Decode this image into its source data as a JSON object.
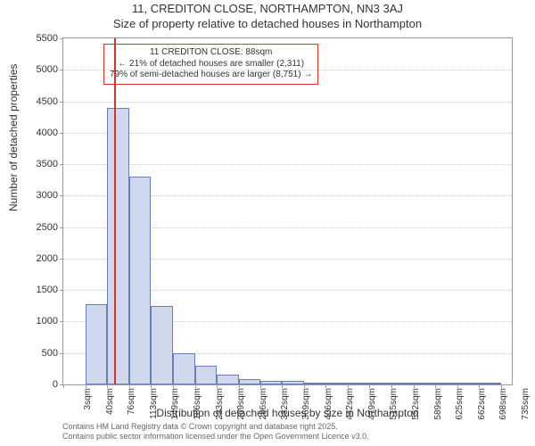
{
  "chart": {
    "type": "histogram",
    "title_line1": "11, CREDITON CLOSE, NORTHAMPTON, NN3 3AJ",
    "title_line2": "Size of property relative to detached houses in Northampton",
    "title_fontsize": 13,
    "x_label": "Distribution of detached houses by size in Northampton",
    "y_label": "Number of detached properties",
    "axis_label_fontsize": 12,
    "background_color": "#ffffff",
    "plot_border_color": "#999999",
    "grid_color": "#cccccc",
    "bar_fill": "#cfd8ec",
    "bar_stroke": "#6a7fb0",
    "ref_line_color": "#d33333",
    "ref_line_x_sqm": 88,
    "ylim": [
      0,
      5500
    ],
    "y_ticks": [
      0,
      500,
      1000,
      1500,
      2000,
      2500,
      3000,
      3500,
      4000,
      4500,
      5000,
      5500
    ],
    "x_ticks_sqm": [
      3,
      40,
      76,
      113,
      149,
      186,
      223,
      259,
      296,
      332,
      369,
      406,
      442,
      479,
      515,
      552,
      589,
      625,
      662,
      698,
      735
    ],
    "x_tick_suffix": "sqm",
    "x_min_sqm": 3,
    "x_max_sqm": 753,
    "bars": [
      {
        "x_start": 3,
        "x_end": 40,
        "count": 0
      },
      {
        "x_start": 40,
        "x_end": 76,
        "count": 1270
      },
      {
        "x_start": 76,
        "x_end": 113,
        "count": 4400
      },
      {
        "x_start": 113,
        "x_end": 149,
        "count": 3300
      },
      {
        "x_start": 149,
        "x_end": 186,
        "count": 1250
      },
      {
        "x_start": 186,
        "x_end": 223,
        "count": 500
      },
      {
        "x_start": 223,
        "x_end": 259,
        "count": 300
      },
      {
        "x_start": 259,
        "x_end": 296,
        "count": 150
      },
      {
        "x_start": 296,
        "x_end": 332,
        "count": 90
      },
      {
        "x_start": 332,
        "x_end": 369,
        "count": 60
      },
      {
        "x_start": 369,
        "x_end": 406,
        "count": 60
      },
      {
        "x_start": 406,
        "x_end": 442,
        "count": 30
      },
      {
        "x_start": 442,
        "x_end": 479,
        "count": 20
      },
      {
        "x_start": 479,
        "x_end": 515,
        "count": 15
      },
      {
        "x_start": 515,
        "x_end": 552,
        "count": 10
      },
      {
        "x_start": 552,
        "x_end": 589,
        "count": 8
      },
      {
        "x_start": 589,
        "x_end": 625,
        "count": 5
      },
      {
        "x_start": 625,
        "x_end": 662,
        "count": 5
      },
      {
        "x_start": 662,
        "x_end": 698,
        "count": 3
      },
      {
        "x_start": 698,
        "x_end": 735,
        "count": 3
      }
    ],
    "annotation": {
      "line1": "11 CREDITON CLOSE: 88sqm",
      "line2": "← 21% of detached houses are smaller (2,311)",
      "line3": "79% of semi-detached houses are larger (8,751) →",
      "border_color": "#d33333",
      "fontsize": 10
    },
    "footer": {
      "line1": "Contains HM Land Registry data © Crown copyright and database right 2025.",
      "line2": "Contains public sector information licensed under the Open Government Licence v3.0.",
      "fontsize": 9,
      "color": "#666666"
    }
  }
}
